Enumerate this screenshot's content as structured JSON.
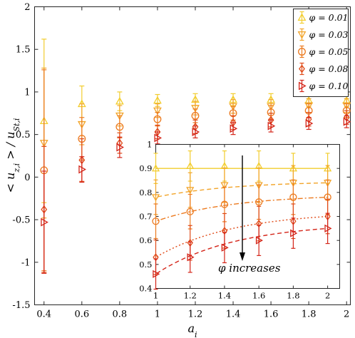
{
  "chart_data": {
    "type": "scatter",
    "xlabel": "a_i",
    "ylabel": "< u_{z,i} > / u_{St,i}",
    "xlim": [
      0.35,
      2.02
    ],
    "ylim": [
      -1.5,
      2
    ],
    "xticks": [
      "0.4",
      "0.6",
      "0.8",
      "1",
      "1.2",
      "1.4",
      "1.6",
      "1.8",
      "2"
    ],
    "yticks": [
      "-1.5",
      "-1",
      "-0.5",
      "0",
      "0.5",
      "1",
      "1.5",
      "2"
    ],
    "legend": {
      "placement": "top-right"
    },
    "series": [
      {
        "name": "φ = 0.01",
        "color": "#f2cd2e",
        "marker": "triangle-up",
        "x": [
          0.4,
          0.6,
          0.8,
          1.0,
          1.2,
          1.4,
          1.6,
          1.8,
          2.0
        ],
        "y": [
          0.66,
          0.86,
          0.89,
          0.9,
          0.91,
          0.91,
          0.91,
          0.9,
          0.9
        ],
        "err": [
          0.96,
          0.21,
          0.11,
          0.07,
          0.07,
          0.07,
          0.07,
          0.07,
          0.07
        ]
      },
      {
        "name": "φ = 0.03",
        "color": "#f2a429",
        "marker": "triangle-down",
        "x": [
          0.4,
          0.6,
          0.8,
          1.0,
          1.2,
          1.4,
          1.6,
          1.8,
          2.0
        ],
        "y": [
          0.4,
          0.62,
          0.72,
          0.78,
          0.81,
          0.83,
          0.83,
          0.84,
          0.84
        ],
        "err": [
          0.88,
          0.24,
          0.12,
          0.08,
          0.08,
          0.08,
          0.08,
          0.08,
          0.08
        ]
      },
      {
        "name": "φ = 0.05",
        "color": "#ec7a1f",
        "marker": "circle",
        "x": [
          0.4,
          0.6,
          0.8,
          1.0,
          1.2,
          1.4,
          1.6,
          1.8,
          2.0
        ],
        "y": [
          0.08,
          0.45,
          0.59,
          0.68,
          0.72,
          0.75,
          0.76,
          0.78,
          0.78
        ],
        "err": [
          1.18,
          0.25,
          0.13,
          0.08,
          0.08,
          0.08,
          0.08,
          0.08,
          0.08
        ]
      },
      {
        "name": "φ = 0.08",
        "color": "#e04a17",
        "marker": "diamond",
        "x": [
          0.4,
          0.6,
          0.8,
          1.0,
          1.2,
          1.4,
          1.6,
          1.8,
          2.0
        ],
        "y": [
          -0.38,
          0.2,
          0.4,
          0.53,
          0.59,
          0.64,
          0.67,
          0.68,
          0.7
        ],
        "err": [
          0.74,
          0.25,
          0.12,
          0.08,
          0.08,
          0.08,
          0.08,
          0.08,
          0.08
        ]
      },
      {
        "name": "φ = 0.10",
        "color": "#d42418",
        "marker": "triangle-right",
        "x": [
          0.4,
          0.6,
          0.8,
          1.0,
          1.2,
          1.4,
          1.6,
          1.8,
          2.0
        ],
        "y": [
          -0.53,
          0.09,
          0.35,
          0.46,
          0.53,
          0.57,
          0.6,
          0.63,
          0.65
        ],
        "err": [
          0.6,
          0.15,
          0.12,
          0.07,
          0.07,
          0.07,
          0.07,
          0.07,
          0.07
        ]
      }
    ],
    "inset": {
      "xlim": [
        1.0,
        2.07
      ],
      "ylim": [
        0.4,
        1.0
      ],
      "xticks": [
        "1",
        "1.2",
        "1.4",
        "1.6",
        "1.8",
        "2"
      ],
      "yticks": [
        "0.4",
        "0.5",
        "0.6",
        "0.7",
        "0.8",
        "0.9",
        "1"
      ],
      "x_points": [
        1.0,
        1.2,
        1.4,
        1.6,
        1.8,
        2.0
      ],
      "series_line_styles": [
        "solid",
        "dashed",
        "dashdot",
        "dotted",
        "dashed"
      ],
      "annotation": "φ increases"
    }
  }
}
